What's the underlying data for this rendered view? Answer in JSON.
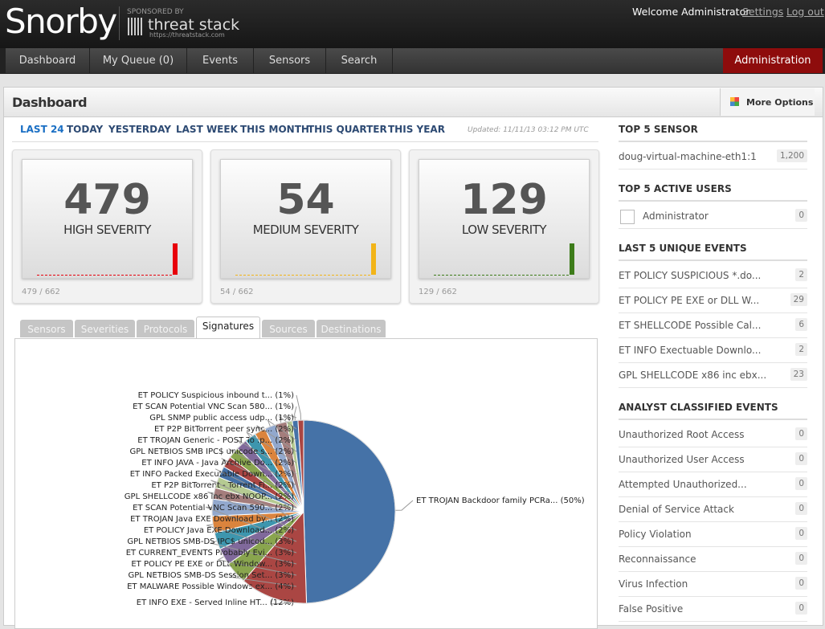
{
  "header": {
    "logo": "Snorby",
    "sponsor": "SPONSORED BY",
    "sponsor_name": "threat stack",
    "sponsor_url": "https://threatstack.com",
    "welcome": "Welcome Administrator",
    "settings": "Settings",
    "logout": "Log out"
  },
  "nav": [
    "Dashboard",
    "My Queue (0)",
    "Events",
    "Sensors",
    "Search"
  ],
  "admin": "Administration",
  "page": {
    "title": "Dashboard",
    "more_options": "More Options"
  },
  "ranges": [
    "LAST 24",
    "TODAY",
    "YESTERDAY",
    "LAST WEEK",
    "THIS MONTH",
    "THIS QUARTER",
    "THIS YEAR"
  ],
  "updated": "Updated: 11/11/13 03:12 PM UTC",
  "severities": [
    {
      "count": "479",
      "label": "HIGH SEVERITY",
      "ratio": "479 / 662",
      "color": "#e8000b"
    },
    {
      "count": "54",
      "label": "MEDIUM SEVERITY",
      "ratio": "54 / 662",
      "color": "#f2b418"
    },
    {
      "count": "129",
      "label": "LOW SEVERITY",
      "ratio": "129 / 662",
      "color": "#3d7c1a"
    }
  ],
  "tabs": [
    "Sensors",
    "Severities",
    "Protocols",
    "Signatures",
    "Sources",
    "Destinations"
  ],
  "active_tab": 3,
  "chart_data": {
    "type": "pie",
    "categories": [
      "ET TROJAN Backdoor family PCRa...",
      "ET INFO EXE - Served Inline HT...",
      "ET MALWARE Possible Windows ex...",
      "GPL NETBIOS SMB-DS Session Set...",
      "ET POLICY PE EXE or DLL Window...",
      "ET CURRENT_EVENTS Probably Evi...",
      "GPL NETBIOS SMB-DS IPC$ unicod...",
      "ET POLICY Java EXE Download...",
      "ET TROJAN Java EXE Download by...",
      "ET SCAN Potential VNC Scan 590...",
      "GPL SHELLCODE x86 inc ebx NOOP...",
      "ET P2P BitTorrent - Torrent Fi...",
      "ET INFO Packed Executable Down...",
      "ET INFO JAVA - Java Archive Do...",
      "GPL NETBIOS SMB IPC$ unicode s...",
      "ET TROJAN Generic - POST To .p...",
      "ET P2P BitTorrent peer sync...",
      "GPL SNMP public access udp...",
      "ET SCAN Potential VNC Scan 580...",
      "ET POLICY Suspicious inbound t..."
    ],
    "values": [
      50,
      12,
      4,
      3,
      3,
      3,
      3,
      2,
      2,
      2,
      2,
      2,
      2,
      2,
      2,
      2,
      2,
      1,
      1,
      1
    ],
    "value_labels": [
      "(50%)",
      "(12%)",
      "(4%)",
      "(3%)",
      "(3%)",
      "(3%)",
      "(3%)",
      "(2%)",
      "(2%)",
      "(2%)",
      "(2%)",
      "(2%)",
      "(2%)",
      "(2%)",
      "(2%)",
      "(2%)",
      "(2%)",
      "(1%)",
      "(1%)",
      "(1%)"
    ],
    "colors": [
      "#4572a7",
      "#aa4643",
      "#89a54e",
      "#80699b",
      "#3d96ae",
      "#db843d",
      "#92a8cd",
      "#a47d7c",
      "#b5ca92",
      "#4572a7",
      "#aa4643",
      "#89a54e",
      "#80699b",
      "#3d96ae",
      "#db843d",
      "#92a8cd",
      "#a47d7c",
      "#b5ca92",
      "#4572a7",
      "#aa4643"
    ]
  },
  "sidebar": [
    {
      "title": "TOP 5 SENSOR",
      "items": [
        {
          "label": "doug-virtual-machine-eth1:1",
          "count": "1,200"
        }
      ]
    },
    {
      "title": "TOP 5 ACTIVE USERS",
      "items": [
        {
          "label": "Administrator",
          "count": "0"
        }
      ]
    },
    {
      "title": "LAST 5 UNIQUE EVENTS",
      "items": [
        {
          "label": "ET POLICY SUSPICIOUS *.do...",
          "count": "2"
        },
        {
          "label": "ET POLICY PE EXE or DLL W...",
          "count": "29"
        },
        {
          "label": "ET SHELLCODE Possible Cal...",
          "count": "6"
        },
        {
          "label": "ET INFO Exectuable Downlo...",
          "count": "2"
        },
        {
          "label": "GPL SHELLCODE x86 inc ebx...",
          "count": "23"
        }
      ]
    },
    {
      "title": "ANALYST CLASSIFIED EVENTS",
      "items": [
        {
          "label": "Unauthorized Root Access",
          "count": "0"
        },
        {
          "label": "Unauthorized User Access",
          "count": "0"
        },
        {
          "label": "Attempted Unauthorized...",
          "count": "0"
        },
        {
          "label": "Denial of Service Attack",
          "count": "0"
        },
        {
          "label": "Policy Violation",
          "count": "0"
        },
        {
          "label": "Reconnaissance",
          "count": "0"
        },
        {
          "label": "Virus Infection",
          "count": "0"
        },
        {
          "label": "False Positive",
          "count": "0"
        }
      ]
    }
  ]
}
